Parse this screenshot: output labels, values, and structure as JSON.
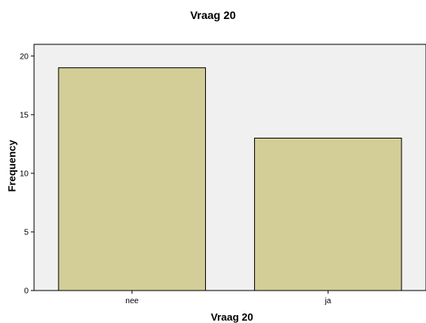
{
  "chart_data": {
    "type": "bar",
    "title": "Vraag 20",
    "xlabel": "Vraag 20",
    "ylabel": "Frequency",
    "categories": [
      "nee",
      "ja"
    ],
    "values": [
      19,
      13
    ],
    "ylim": [
      0,
      21
    ],
    "yticks": [
      "0",
      "5",
      "10",
      "15",
      "20"
    ],
    "grid": false,
    "legend": "none",
    "colors": {
      "bar_fill": "#d3ce97",
      "bar_stroke": "#000000",
      "plot_background": "#f0f0f0"
    }
  }
}
